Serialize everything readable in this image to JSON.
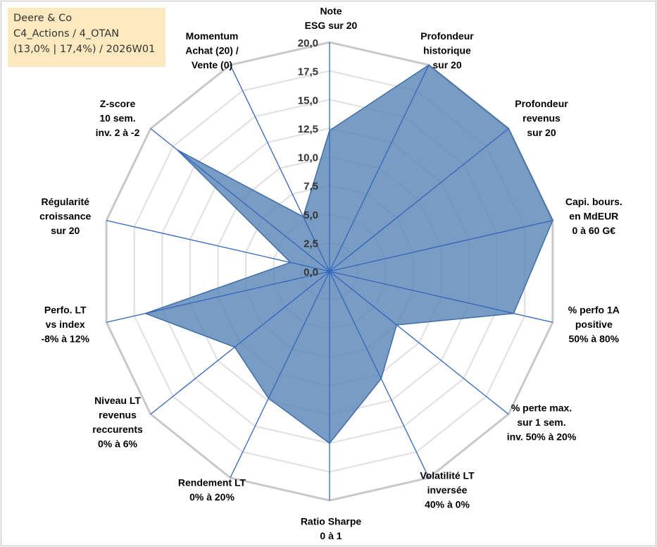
{
  "info_box": {
    "line1": "Deere & Co",
    "line2": "C4_Actions / 4_OTAN",
    "line3": "(13,0% | 17,4%) / 2026W01"
  },
  "colors": {
    "fill": "#5b86b8",
    "stroke": "#3f6fa8",
    "spoke": "#3366bb",
    "grid_outer": "#c8c8c8",
    "grid_inner": "#e2e2e2",
    "info_bg": "#fde9c0"
  },
  "chart_data": {
    "type": "radar",
    "title": "",
    "rlim": [
      0,
      20
    ],
    "ticks": [
      "0,0",
      "2,5",
      "5,0",
      "7,5",
      "10,0",
      "12,5",
      "15,0",
      "17,5",
      "20,0"
    ],
    "tick_values": [
      0,
      2.5,
      5,
      7.5,
      10,
      12.5,
      15,
      17.5,
      20
    ],
    "axes": [
      {
        "label": [
          "Note",
          "ESG sur 20"
        ],
        "value": 12.3
      },
      {
        "label": [
          "Profondeur",
          "historique",
          "sur 20"
        ],
        "value": 20.0
      },
      {
        "label": [
          "Profondeur",
          "revenus",
          "sur 20"
        ],
        "value": 20.0
      },
      {
        "label": [
          "Capi. bours.",
          "en MdEUR",
          "0 à 60 G€"
        ],
        "value": 20.0
      },
      {
        "label": [
          "% perfo 1A",
          "positive",
          "50% à 80%"
        ],
        "value": 16.5
      },
      {
        "label": [
          "% perte max.",
          "sur 1 sem.",
          "inv. 50% à 20%"
        ],
        "value": 7.5
      },
      {
        "label": [
          "Volatilité LT",
          "inversée",
          "40% à 0%"
        ],
        "value": 10.4
      },
      {
        "label": [
          "Ratio Sharpe",
          "0 à 1"
        ],
        "value": 15.0
      },
      {
        "label": [
          "Rendement LT",
          "0% à 20%"
        ],
        "value": 12.3
      },
      {
        "label": [
          "Niveau LT",
          "revenus",
          "reccurents",
          "0% à 6%"
        ],
        "value": 10.6
      },
      {
        "label": [
          "Perfo. LT",
          "vs index",
          "-8% à 12%"
        ],
        "value": 16.5
      },
      {
        "label": [
          "Régularité",
          "croissance",
          "sur 20"
        ],
        "value": 3.5
      },
      {
        "label": [
          "Z-score",
          "10 sem.",
          "inv. 2 à -2"
        ],
        "value": 17.0
      },
      {
        "label": [
          "Momentum",
          "Achat (20) /",
          "Vente (0)"
        ],
        "value": 5.3
      }
    ]
  }
}
